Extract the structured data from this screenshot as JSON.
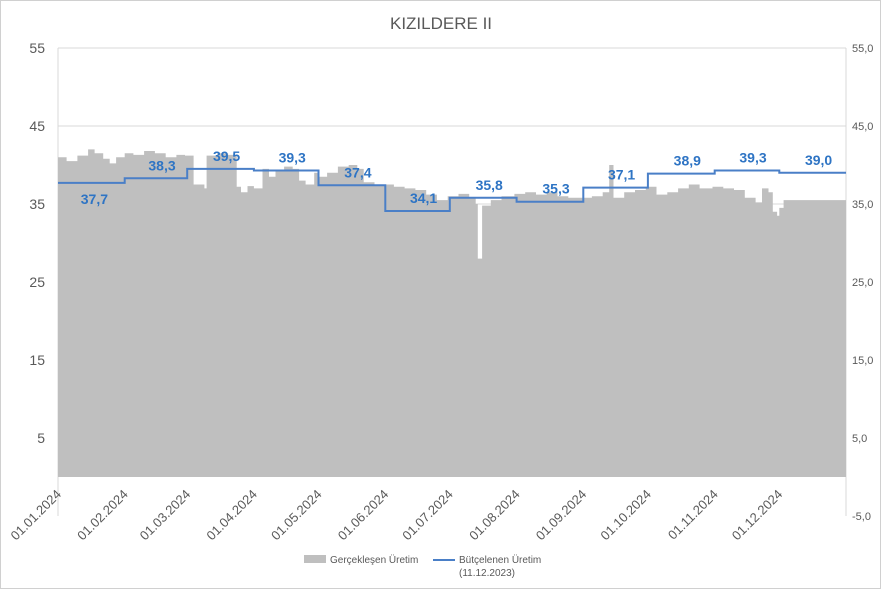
{
  "chart_data": {
    "type": "area",
    "title": "KIZILDERE II",
    "y_left": {
      "min": -5,
      "max": 55,
      "ticks": [
        "55",
        "45",
        "35",
        "25",
        "15",
        "5"
      ],
      "tick_values": [
        55,
        45,
        35,
        25,
        15,
        5
      ]
    },
    "y_right": {
      "min": -5,
      "max": 55,
      "ticks": [
        "55,0",
        "45,0",
        "35,0",
        "25,0",
        "15,0",
        "5,0",
        "-5,0"
      ],
      "tick_values": [
        55,
        45,
        35,
        25,
        15,
        5,
        -5
      ]
    },
    "x_ticks": [
      "01.01.2024",
      "01.02.2024",
      "01.03.2024",
      "01.04.2024",
      "01.05.2024",
      "01.06.2024",
      "01.07.2024",
      "01.08.2024",
      "01.09.2024",
      "01.10.2024",
      "01.11.2024",
      "01.12.2024"
    ],
    "grid": true,
    "legend_position": "bottom",
    "series": [
      {
        "name": "Gerçekleşen Üretim",
        "kind": "area",
        "color": "#bfbfbf",
        "points": [
          [
            "01.01.2024",
            41.0
          ],
          [
            "05.01.2024",
            40.5
          ],
          [
            "10.01.2024",
            41.2
          ],
          [
            "15.01.2024",
            42.0
          ],
          [
            "18.01.2024",
            41.5
          ],
          [
            "22.01.2024",
            40.8
          ],
          [
            "25.01.2024",
            40.2
          ],
          [
            "28.01.2024",
            41.0
          ],
          [
            "01.02.2024",
            41.5
          ],
          [
            "05.02.2024",
            41.3
          ],
          [
            "10.02.2024",
            41.8
          ],
          [
            "15.02.2024",
            41.5
          ],
          [
            "20.02.2024",
            41.0
          ],
          [
            "25.02.2024",
            41.3
          ],
          [
            "29.02.2024",
            41.2
          ],
          [
            "04.03.2024",
            37.5
          ],
          [
            "09.03.2024",
            37.0
          ],
          [
            "10.03.2024",
            41.2
          ],
          [
            "15.03.2024",
            41.5
          ],
          [
            "20.03.2024",
            41.3
          ],
          [
            "24.03.2024",
            37.2
          ],
          [
            "26.03.2024",
            36.5
          ],
          [
            "29.03.2024",
            37.3
          ],
          [
            "01.04.2024",
            37.0
          ],
          [
            "05.04.2024",
            39.5
          ],
          [
            "08.04.2024",
            38.5
          ],
          [
            "11.04.2024",
            39.3
          ],
          [
            "15.04.2024",
            39.8
          ],
          [
            "19.04.2024",
            39.5
          ],
          [
            "22.04.2024",
            38.0
          ],
          [
            "25.04.2024",
            37.5
          ],
          [
            "29.04.2024",
            39.0
          ],
          [
            "01.05.2024",
            38.5
          ],
          [
            "05.05.2024",
            39.0
          ],
          [
            "10.05.2024",
            39.8
          ],
          [
            "15.05.2024",
            40.0
          ],
          [
            "19.05.2024",
            39.5
          ],
          [
            "22.05.2024",
            37.8
          ],
          [
            "27.05.2024",
            37.5
          ],
          [
            "01.06.2024",
            37.5
          ],
          [
            "05.06.2024",
            37.2
          ],
          [
            "10.06.2024",
            37.0
          ],
          [
            "15.06.2024",
            36.8
          ],
          [
            "20.06.2024",
            36.2
          ],
          [
            "25.06.2024",
            35.5
          ],
          [
            "30.06.2024",
            36.0
          ],
          [
            "05.07.2024",
            36.3
          ],
          [
            "10.07.2024",
            35.8
          ],
          [
            "13.07.2024",
            35.0
          ],
          [
            "14.07.2024",
            28.0
          ],
          [
            "16.07.2024",
            34.8
          ],
          [
            "20.07.2024",
            35.5
          ],
          [
            "25.07.2024",
            36.0
          ],
          [
            "31.07.2024",
            36.3
          ],
          [
            "05.08.2024",
            36.5
          ],
          [
            "10.08.2024",
            36.2
          ],
          [
            "15.08.2024",
            36.5
          ],
          [
            "20.08.2024",
            36.0
          ],
          [
            "25.08.2024",
            35.8
          ],
          [
            "31.08.2024",
            35.8
          ],
          [
            "05.09.2024",
            36.0
          ],
          [
            "10.09.2024",
            36.5
          ],
          [
            "13.09.2024",
            40.0
          ],
          [
            "15.09.2024",
            35.8
          ],
          [
            "20.09.2024",
            36.5
          ],
          [
            "25.09.2024",
            36.8
          ],
          [
            "30.09.2024",
            37.2
          ],
          [
            "05.10.2024",
            36.2
          ],
          [
            "10.10.2024",
            36.5
          ],
          [
            "15.10.2024",
            37.0
          ],
          [
            "20.10.2024",
            37.5
          ],
          [
            "25.10.2024",
            37.0
          ],
          [
            "31.10.2024",
            37.2
          ],
          [
            "05.11.2024",
            37.0
          ],
          [
            "10.11.2024",
            36.8
          ],
          [
            "15.11.2024",
            35.8
          ],
          [
            "20.11.2024",
            35.2
          ],
          [
            "23.11.2024",
            37.0
          ],
          [
            "26.11.2024",
            36.5
          ],
          [
            "28.11.2024",
            34.0
          ],
          [
            "30.11.2024",
            33.5
          ],
          [
            "01.12.2024",
            34.5
          ],
          [
            "03.12.2024",
            35.5
          ],
          [
            "31.12.2024",
            35.5
          ]
        ]
      },
      {
        "name": "Bütçelenen Üretim",
        "name_line2": "(11.12.2023)",
        "kind": "step-line",
        "color": "#4a7fc7",
        "months": [
          "01.2024",
          "02.2024",
          "03.2024",
          "04.2024",
          "05.2024",
          "06.2024",
          "07.2024",
          "08.2024",
          "09.2024",
          "10.2024",
          "11.2024",
          "12.2024"
        ],
        "values": [
          37.7,
          38.3,
          39.5,
          39.3,
          37.4,
          34.1,
          35.8,
          35.3,
          37.1,
          38.9,
          39.3,
          39.0
        ],
        "labels": [
          "37,7",
          "38,3",
          "39,5",
          "39,3",
          "37,4",
          "34,1",
          "35,8",
          "35,3",
          "37,1",
          "38,9",
          "39,3",
          "39,0"
        ]
      }
    ]
  }
}
